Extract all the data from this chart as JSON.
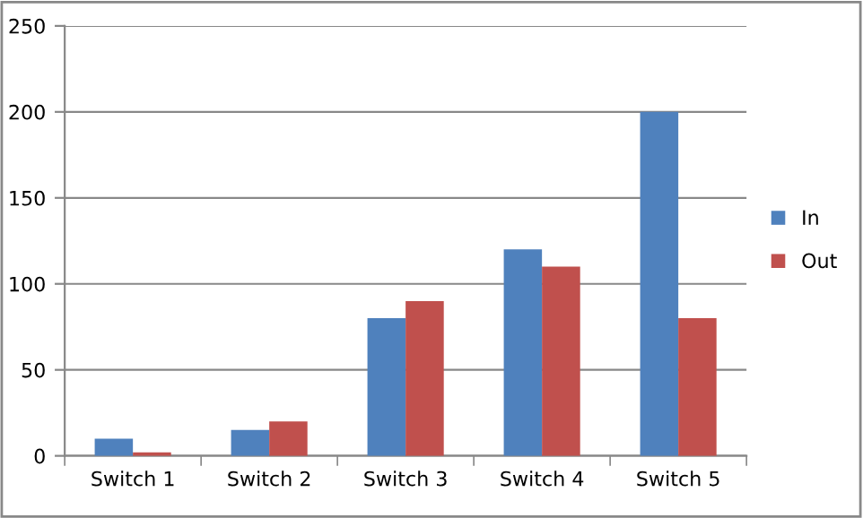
{
  "chart_data": {
    "type": "bar",
    "categories": [
      "Switch 1",
      "Switch 2",
      "Switch 3",
      "Switch 4",
      "Switch 5"
    ],
    "series": [
      {
        "name": "In",
        "color": "#4f81bd",
        "values": [
          10,
          15,
          80,
          120,
          200
        ]
      },
      {
        "name": "Out",
        "color": "#c0504d",
        "values": [
          2,
          20,
          90,
          110,
          80
        ]
      }
    ],
    "ylim": [
      0,
      250
    ],
    "yticks": [
      0,
      50,
      100,
      150,
      200,
      250
    ],
    "grid": "y",
    "legend": "right"
  }
}
